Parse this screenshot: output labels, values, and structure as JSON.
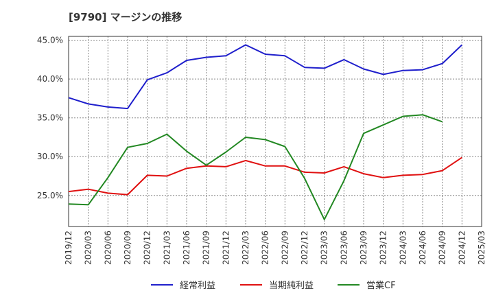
{
  "chart_data": {
    "type": "line",
    "title": "[9790]  マージンの推移",
    "xlabel": "",
    "ylabel": "",
    "x": [
      "2019/12",
      "2020/03",
      "2020/06",
      "2020/09",
      "2020/12",
      "2021/03",
      "2021/06",
      "2021/09",
      "2021/12",
      "2022/03",
      "2022/06",
      "2022/09",
      "2022/12",
      "2023/03",
      "2023/06",
      "2023/09",
      "2023/12",
      "2024/03",
      "2024/06",
      "2024/09",
      "2024/12",
      "2025/03"
    ],
    "ylim": [
      21.0,
      45.5
    ],
    "yticks": [
      25.0,
      30.0,
      35.0,
      40.0,
      45.0
    ],
    "ytick_labels": [
      "25.0%",
      "30.0%",
      "35.0%",
      "40.0%",
      "45.0%"
    ],
    "grid": true,
    "legend_position": "bottom",
    "series": [
      {
        "name": "経常利益",
        "color": "#1f1fcc",
        "values": [
          37.6,
          36.8,
          36.4,
          36.2,
          39.9,
          40.8,
          42.4,
          42.8,
          43.0,
          44.4,
          43.2,
          43.0,
          41.5,
          41.4,
          42.5,
          41.3,
          40.6,
          41.1,
          41.2,
          42.0,
          44.4,
          null
        ]
      },
      {
        "name": "当期純利益",
        "color": "#e01010",
        "values": [
          25.5,
          25.8,
          25.3,
          25.1,
          27.6,
          27.5,
          28.5,
          28.8,
          28.7,
          29.5,
          28.8,
          28.8,
          28.0,
          27.9,
          28.7,
          27.8,
          27.3,
          27.6,
          27.7,
          28.2,
          29.9,
          null
        ]
      },
      {
        "name": "営業CF",
        "color": "#228822",
        "values": [
          23.9,
          23.8,
          27.3,
          31.2,
          31.7,
          32.9,
          30.7,
          28.9,
          30.6,
          32.5,
          32.2,
          31.3,
          27.2,
          21.9,
          26.9,
          33.0,
          34.1,
          35.2,
          35.4,
          34.5,
          null,
          null
        ]
      }
    ]
  }
}
